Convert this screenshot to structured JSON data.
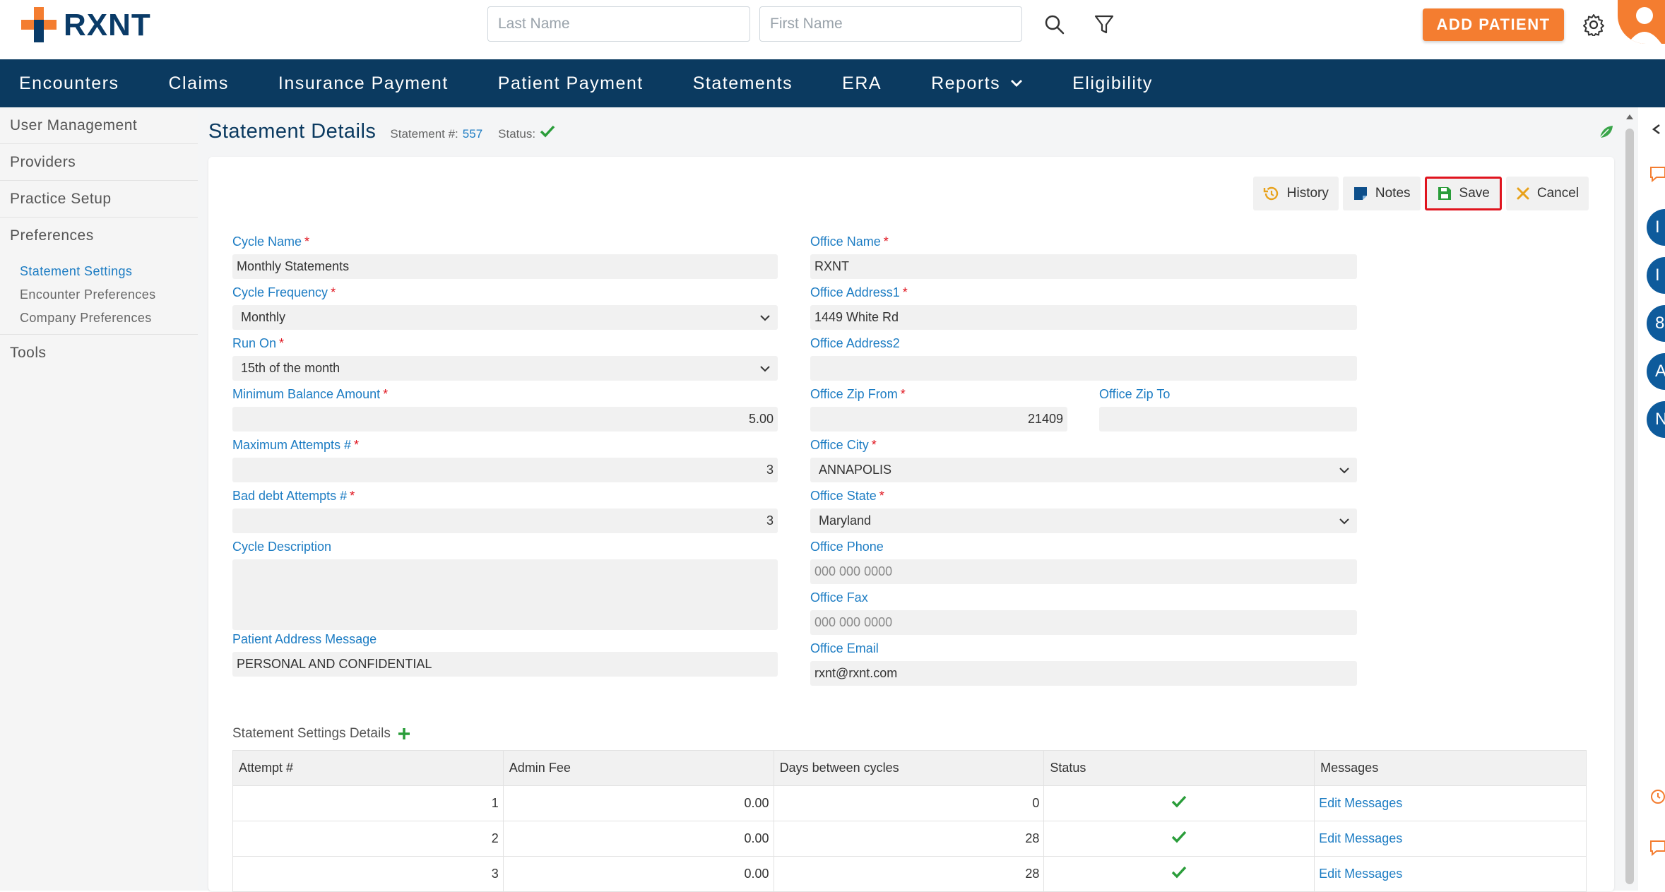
{
  "header": {
    "brand": "RXNT",
    "last_name_placeholder": "Last Name",
    "first_name_placeholder": "First Name",
    "add_patient_label": "ADD PATIENT"
  },
  "nav": {
    "encounters": "Encounters",
    "claims": "Claims",
    "insurance_payment": "Insurance Payment",
    "patient_payment": "Patient Payment",
    "statements": "Statements",
    "era": "ERA",
    "reports": "Reports",
    "eligibility": "Eligibility"
  },
  "sidebar": {
    "user_management": "User Management",
    "providers": "Providers",
    "practice_setup": "Practice Setup",
    "preferences": "Preferences",
    "statement_settings": "Statement Settings",
    "encounter_preferences": "Encounter Preferences",
    "company_preferences": "Company Preferences",
    "tools": "Tools"
  },
  "page": {
    "title": "Statement Details",
    "statement_label": "Statement #:",
    "statement_number": "557",
    "status_label": "Status:"
  },
  "toolbar": {
    "history": "History",
    "notes": "Notes",
    "save": "Save",
    "cancel": "Cancel"
  },
  "form": {
    "cycle_name": {
      "label": "Cycle Name",
      "value": "Monthly Statements"
    },
    "cycle_frequency": {
      "label": "Cycle Frequency",
      "value": "Monthly"
    },
    "run_on": {
      "label": "Run On",
      "value": "15th of the month"
    },
    "min_balance": {
      "label": "Minimum Balance Amount",
      "value": "5.00"
    },
    "max_attempts": {
      "label": "Maximum Attempts #",
      "value": "3"
    },
    "bad_debt": {
      "label": "Bad debt Attempts #",
      "value": "3"
    },
    "cycle_description": {
      "label": "Cycle Description",
      "value": ""
    },
    "patient_address_message": {
      "label": "Patient Address Message",
      "value": "PERSONAL AND CONFIDENTIAL"
    },
    "office_name": {
      "label": "Office Name",
      "value": "RXNT"
    },
    "office_address1": {
      "label": "Office Address1",
      "value": "1449 White Rd"
    },
    "office_address2": {
      "label": "Office Address2",
      "value": ""
    },
    "office_zip_from": {
      "label": "Office Zip From",
      "value": "21409"
    },
    "office_zip_to": {
      "label": "Office Zip To",
      "value": ""
    },
    "office_city": {
      "label": "Office City",
      "value": "ANNAPOLIS"
    },
    "office_state": {
      "label": "Office State",
      "value": "Maryland"
    },
    "office_phone": {
      "label": "Office Phone",
      "placeholder": "000 000 0000"
    },
    "office_fax": {
      "label": "Office Fax",
      "placeholder": "000 000 0000"
    },
    "office_email": {
      "label": "Office Email",
      "value": "rxnt@rxnt.com"
    }
  },
  "details": {
    "title": "Statement Settings Details",
    "columns": {
      "attempt": "Attempt #",
      "admin_fee": "Admin Fee",
      "days": "Days between cycles",
      "status": "Status",
      "messages": "Messages"
    },
    "rows": [
      {
        "attempt": "1",
        "admin_fee": "0.00",
        "days": "0",
        "messages": "Edit Messages"
      },
      {
        "attempt": "2",
        "admin_fee": "0.00",
        "days": "28",
        "messages": "Edit Messages"
      },
      {
        "attempt": "3",
        "admin_fee": "0.00",
        "days": "28",
        "messages": "Edit Messages"
      }
    ]
  },
  "right_rail": {
    "circle1": "I",
    "circle2": "I",
    "circle3": "8",
    "circle4": "A",
    "circle5": "N"
  },
  "colors": {
    "navy": "#0b3a60",
    "accent_orange": "#f47d30",
    "link_blue": "#1c7cc3",
    "required_red": "#e0141e",
    "success_green": "#2a9d3a"
  }
}
